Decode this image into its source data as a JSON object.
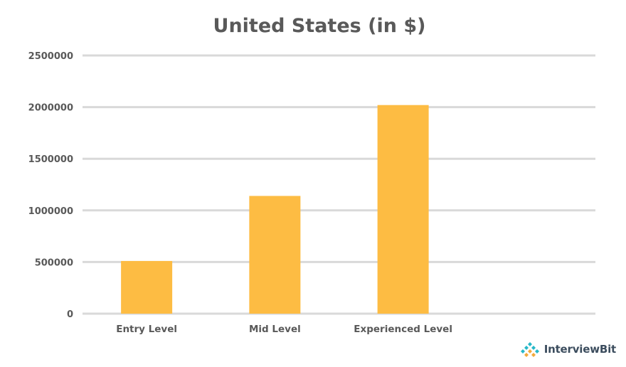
{
  "chart_data": {
    "type": "bar",
    "title": "United States (in $)",
    "categories": [
      "Entry Level",
      "Mid Level",
      "Experienced Level",
      ""
    ],
    "values": [
      510000,
      1140000,
      2020000,
      null
    ],
    "ylim": [
      0,
      2500000
    ],
    "yticks": [
      "0",
      "500000",
      "1000000",
      "1500000",
      "2000000",
      "2500000"
    ],
    "xlabel": "",
    "ylabel": "",
    "grid": true,
    "legend": "none",
    "colors": {
      "bar": "#fdbc43",
      "grid": "#d9d9d9",
      "text": "#595959"
    }
  },
  "branding": {
    "logo_text": "InterviewBit",
    "logo_icon": "interviewbit-logo-icon"
  }
}
